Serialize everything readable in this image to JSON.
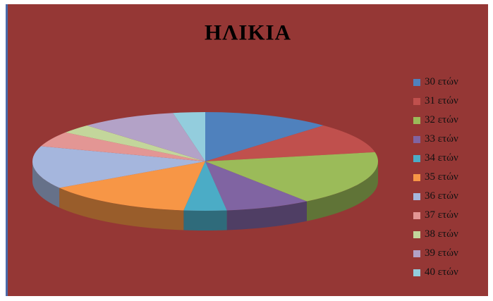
{
  "chart_data": {
    "type": "pie",
    "title": "ΗΛΙΚΙΑ",
    "legend_position": "right",
    "categories": [
      "30 ετών",
      "31 ετών",
      "32 ετών",
      "33 ετών",
      "34 ετών",
      "35 ετών",
      "36 ετών",
      "37 ετών",
      "38 ετών",
      "39 ετών",
      "40 ετών"
    ],
    "values": [
      12,
      10,
      18,
      8,
      4,
      14,
      14,
      5,
      3,
      9,
      3
    ],
    "colors": [
      "#4f81bd",
      "#c0504d",
      "#9bbb59",
      "#8064a2",
      "#4bacc6",
      "#f79646",
      "#a5b6dd",
      "#e39694",
      "#c3d69b",
      "#b3a2c7",
      "#93cddd"
    ],
    "style": "3d-tilted"
  }
}
